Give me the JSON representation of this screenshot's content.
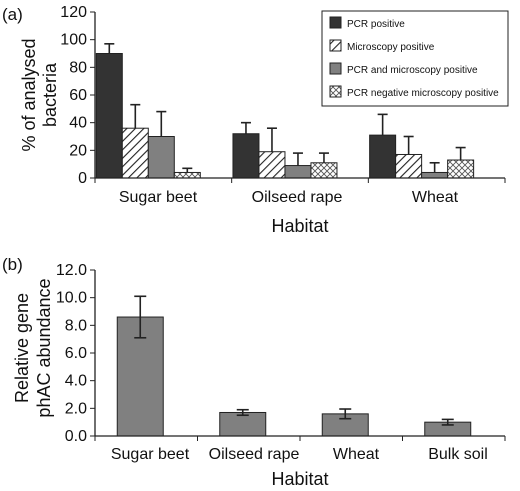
{
  "chart_data": [
    {
      "panel_label": "(a)",
      "type": "bar",
      "categories": [
        "Sugar beet",
        "Oilseed rape",
        "Wheat"
      ],
      "xlabel": "Habitat",
      "ylabel_lines": [
        "% of analysed",
        "bacteria"
      ],
      "ylim": [
        0,
        120
      ],
      "yticks": [
        0,
        20,
        40,
        60,
        80,
        100,
        120
      ],
      "legend_position": "top-right",
      "series": [
        {
          "name": "PCR positive",
          "values": [
            90,
            32,
            31
          ],
          "errors": [
            7,
            8,
            15
          ],
          "color": "#333333",
          "pattern": "solid"
        },
        {
          "name": "Microscopy positive",
          "values": [
            36,
            19,
            17
          ],
          "errors": [
            17,
            17,
            13
          ],
          "color": "#ffffff",
          "pattern": "diagonal"
        },
        {
          "name": "PCR and microscopy positive",
          "values": [
            30,
            9,
            4
          ],
          "errors": [
            18,
            9,
            7
          ],
          "color": "#808080",
          "pattern": "solid"
        },
        {
          "name": "PCR negative microscopy positive",
          "values": [
            4,
            11,
            13
          ],
          "errors": [
            3,
            7,
            9
          ],
          "color": "#ffffff",
          "pattern": "crosshatch"
        }
      ]
    },
    {
      "panel_label": "(b)",
      "type": "bar",
      "categories": [
        "Sugar beet",
        "Oilseed rape",
        "Wheat",
        "Bulk soil"
      ],
      "xlabel": "Habitat",
      "ylabel_lines": [
        "Relative gene",
        "phAC abundance"
      ],
      "ylim": [
        0,
        12
      ],
      "yticks": [
        "0.0",
        "2.0",
        "4.0",
        "6.0",
        "8.0",
        "10.0",
        "12.0"
      ],
      "series": [
        {
          "values": [
            8.6,
            1.7,
            1.6,
            1.0
          ],
          "errors": [
            1.5,
            0.2,
            0.35,
            0.2
          ],
          "color": "#808080"
        }
      ]
    }
  ]
}
